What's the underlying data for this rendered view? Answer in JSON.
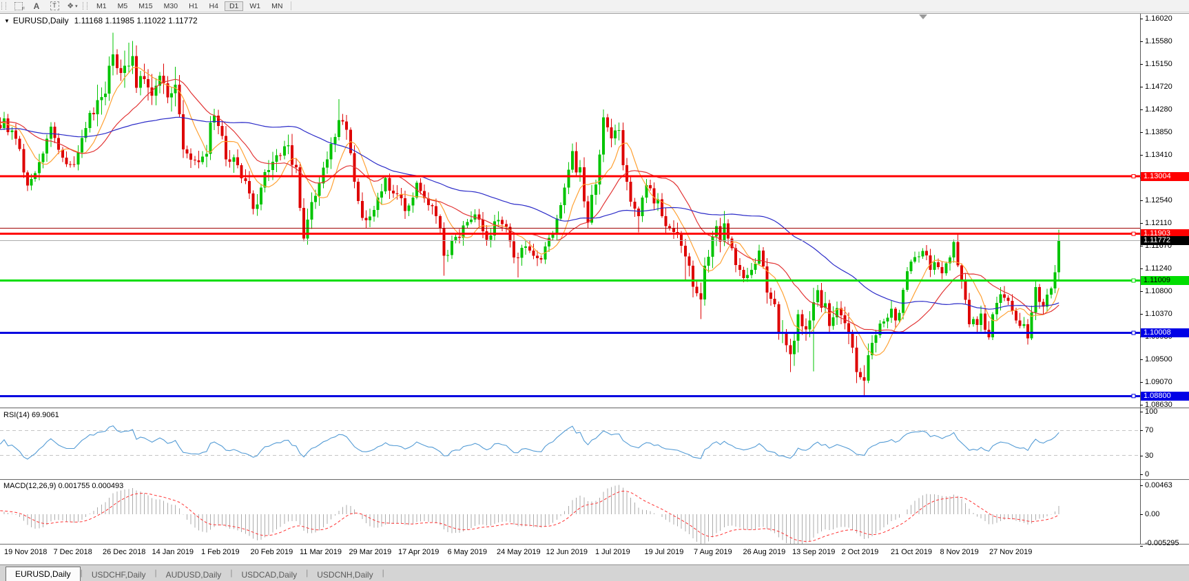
{
  "toolbar": {
    "icons": [
      {
        "name": "grid-f-icon",
        "glyph": "F"
      },
      {
        "name": "text-label-icon",
        "glyph": "A"
      },
      {
        "name": "text-box-icon",
        "glyph": "T"
      },
      {
        "name": "cursor-tool-icon",
        "glyph": "❖"
      }
    ],
    "dropdown_caret": "▾",
    "timeframes": [
      "M1",
      "M5",
      "M15",
      "M30",
      "H1",
      "H4",
      "D1",
      "W1",
      "MN"
    ],
    "active_timeframe": "D1"
  },
  "title": {
    "dropdown": "▼",
    "symbol": "EURUSD,Daily",
    "ohlc": "1.11168 1.11985 1.11022 1.11772"
  },
  "indicators": {
    "rsi_label": "RSI(14) 69.9061",
    "macd_label": "MACD(12,26,9) 0.001755 0.000493"
  },
  "price_axis_ticks": [
    "1.16020",
    "1.15580",
    "1.15150",
    "1.14720",
    "1.14280",
    "1.13850",
    "1.13410",
    "1.12980",
    "1.12540",
    "1.12110",
    "1.11670",
    "1.11240",
    "1.10800",
    "1.10370",
    "1.09930",
    "1.09500",
    "1.09070",
    "1.08630"
  ],
  "rsi_axis_ticks": [
    {
      "label": "100",
      "value": 100
    },
    {
      "label": "70",
      "value": 70
    },
    {
      "label": "30",
      "value": 30
    },
    {
      "label": "0",
      "value": 0
    }
  ],
  "macd_axis_ticks": [
    {
      "label": "0.00463",
      "value": 0.00463
    },
    {
      "label": "0.00",
      "value": 0
    },
    {
      "label": "-0.005295",
      "value": -0.005295
    }
  ],
  "level_labels": [
    {
      "label": "1.13004",
      "price": 1.13004,
      "bg": "#FF0000",
      "fg": "#FFFFFF"
    },
    {
      "label": "1.11903",
      "price": 1.11903,
      "bg": "#FF0000",
      "fg": "#FFFFFF"
    },
    {
      "label": "1.11009",
      "price": 1.11009,
      "bg": "#00DD00",
      "fg": "#000000"
    },
    {
      "label": "1.10008",
      "price": 1.10008,
      "bg": "#0000E6",
      "fg": "#FFFFFF"
    },
    {
      "label": "1.08800",
      "price": 1.088,
      "bg": "#0000E6",
      "fg": "#FFFFFF"
    }
  ],
  "bid_label": {
    "label": "1.11772",
    "price": 1.11772,
    "bg": "#000000",
    "fg": "#FFFFFF"
  },
  "tabs": {
    "items": [
      "EURUSD,Daily",
      "USDCHF,Daily",
      "AUDUSD,Daily",
      "USDCAD,Daily",
      "USDCNH,Daily"
    ],
    "active_index": 0
  },
  "colors": {
    "up": "#00C400",
    "down": "#DE0000",
    "ma_fast": "#FFA133",
    "ma_mid": "#E23535",
    "ma_slow": "#2B2BC8",
    "rsi_line": "#539BD5",
    "rsi_level_dash": "#C4C4C4",
    "macd_hist": "#ABABAB",
    "macd_signal": "#FF3232",
    "bid_line": "#ABABAB",
    "separator": "#6A6A6A",
    "axis_line": "#5A5A5A"
  },
  "chart_data": {
    "type": "candlestick",
    "symbol": "EURUSD",
    "timeframe": "Daily",
    "current_bar": {
      "open": 1.11168,
      "high": 1.11985,
      "low": 1.11022,
      "close": 1.11772
    },
    "bars_total": 272,
    "price_range_visible": [
      1.0863,
      1.1602
    ],
    "horizontal_lines": [
      {
        "price": 1.13004,
        "color": "#FF0000",
        "width": 3,
        "label": true
      },
      {
        "price": 1.1201,
        "color": "#A00000",
        "width": 1,
        "label": false
      },
      {
        "price": 1.11903,
        "color": "#FF0000",
        "width": 3,
        "label": true
      },
      {
        "price": 1.11009,
        "color": "#00DD00",
        "width": 3,
        "label": true
      },
      {
        "price": 1.10008,
        "color": "#0000E0",
        "width": 3,
        "label": true
      },
      {
        "price": 1.088,
        "color": "#0000E0",
        "width": 3,
        "label": true
      }
    ],
    "bid_line_price": 1.11772,
    "moving_averages": [
      {
        "period": 8,
        "color": "#FFA133"
      },
      {
        "period": 20,
        "color": "#E23535"
      },
      {
        "period": 55,
        "color": "#2B2BC8"
      }
    ],
    "rsi": {
      "period": 14,
      "current": 69.9061,
      "dashed_levels": [
        70,
        30
      ],
      "range": [
        0,
        100
      ]
    },
    "macd": {
      "fast": 12,
      "slow": 26,
      "signal": 9,
      "current_macd": 0.001755,
      "current_signal": 0.000493,
      "axis_max": 0.00463,
      "axis_min": -0.005295
    },
    "close_anchors": [
      [
        -60,
        1.1335
      ],
      [
        -45,
        1.1402
      ],
      [
        -30,
        1.1365
      ],
      [
        -15,
        1.1412
      ],
      [
        0,
        1.1405
      ],
      [
        3,
        1.1372
      ],
      [
        6,
        1.1292
      ],
      [
        9,
        1.132
      ],
      [
        12,
        1.1398
      ],
      [
        15,
        1.1342
      ],
      [
        18,
        1.1312
      ],
      [
        21,
        1.14
      ],
      [
        24,
        1.1442
      ],
      [
        26,
        1.1478
      ],
      [
        28,
        1.1548
      ],
      [
        30,
        1.15
      ],
      [
        32,
        1.1535
      ],
      [
        34,
        1.148
      ],
      [
        36,
        1.1506
      ],
      [
        38,
        1.1452
      ],
      [
        40,
        1.1476
      ],
      [
        42,
        1.1442
      ],
      [
        44,
        1.1462
      ],
      [
        46,
        1.1358
      ],
      [
        49,
        1.1322
      ],
      [
        52,
        1.1356
      ],
      [
        53,
        1.1418
      ],
      [
        56,
        1.1362
      ],
      [
        59,
        1.1322
      ],
      [
        62,
        1.1302
      ],
      [
        64,
        1.1246
      ],
      [
        67,
        1.1292
      ],
      [
        70,
        1.1332
      ],
      [
        73,
        1.1366
      ],
      [
        75,
        1.1312
      ],
      [
        77,
        1.1186
      ],
      [
        79,
        1.1242
      ],
      [
        82,
        1.133
      ],
      [
        86,
        1.141
      ],
      [
        88,
        1.1372
      ],
      [
        91,
        1.1252
      ],
      [
        92,
        1.1222
      ],
      [
        95,
        1.1242
      ],
      [
        98,
        1.1292
      ],
      [
        101,
        1.1262
      ],
      [
        104,
        1.1232
      ],
      [
        106,
        1.1292
      ],
      [
        108,
        1.1262
      ],
      [
        111,
        1.1232
      ],
      [
        113,
        1.1152
      ],
      [
        116,
        1.1182
      ],
      [
        118,
        1.1202
      ],
      [
        121,
        1.1232
      ],
      [
        124,
        1.1182
      ],
      [
        127,
        1.1222
      ],
      [
        130,
        1.1182
      ],
      [
        132,
        1.1132
      ],
      [
        134,
        1.1172
      ],
      [
        137,
        1.1132
      ],
      [
        140,
        1.1172
      ],
      [
        143,
        1.1252
      ],
      [
        146,
        1.1332
      ],
      [
        148,
        1.1312
      ],
      [
        150,
        1.1212
      ],
      [
        152,
        1.1292
      ],
      [
        154,
        1.1408
      ],
      [
        156,
        1.1382
      ],
      [
        158,
        1.1372
      ],
      [
        160,
        1.1282
      ],
      [
        163,
        1.1225
      ],
      [
        165,
        1.1272
      ],
      [
        168,
        1.1252
      ],
      [
        170,
        1.1212
      ],
      [
        173,
        1.1182
      ],
      [
        175,
        1.1152
      ],
      [
        178,
        1.1082
      ],
      [
        179,
        1.1048
      ],
      [
        180,
        1.1112
      ],
      [
        182,
        1.1198
      ],
      [
        185,
        1.1192
      ],
      [
        188,
        1.1142
      ],
      [
        191,
        1.1102
      ],
      [
        194,
        1.1152
      ],
      [
        196,
        1.1092
      ],
      [
        199,
        1.1012
      ],
      [
        200,
        1.0992
      ],
      [
        202,
        1.0968
      ],
      [
        204,
        1.1035
      ],
      [
        207,
        1.1012
      ],
      [
        208,
        1.1065
      ],
      [
        209,
        1.1072
      ],
      [
        212,
        1.1032
      ],
      [
        215,
        1.1042
      ],
      [
        218,
        1.0958
      ],
      [
        220,
        1.0932
      ],
      [
        221,
        1.0906
      ],
      [
        222,
        1.0962
      ],
      [
        224,
        1.0982
      ],
      [
        227,
        1.1042
      ],
      [
        230,
        1.1032
      ],
      [
        233,
        1.1148
      ],
      [
        235,
        1.1152
      ],
      [
        238,
        1.1132
      ],
      [
        241,
        1.1112
      ],
      [
        244,
        1.1162
      ],
      [
        246,
        1.1102
      ],
      [
        248,
        1.1022
      ],
      [
        251,
        1.1032
      ],
      [
        253,
        1.0996
      ],
      [
        255,
        1.1062
      ],
      [
        258,
        1.1072
      ],
      [
        261,
        1.1012
      ],
      [
        263,
        1.1002
      ],
      [
        265,
        1.1078
      ],
      [
        267,
        1.1062
      ],
      [
        269,
        1.1086
      ],
      [
        270,
        1.1117
      ],
      [
        271,
        1.11772
      ]
    ],
    "wick_events": [
      {
        "bar": 28,
        "high": 1.1575
      },
      {
        "bar": 32,
        "high": 1.1556
      },
      {
        "bar": 44,
        "high": 1.151
      },
      {
        "bar": 77,
        "low": 1.1176
      },
      {
        "bar": 86,
        "high": 1.1448
      },
      {
        "bar": 113,
        "low": 1.111
      },
      {
        "bar": 132,
        "low": 1.1107
      },
      {
        "bar": 154,
        "high": 1.1428
      },
      {
        "bar": 163,
        "low": 1.1193
      },
      {
        "bar": 175,
        "low": 1.1101
      },
      {
        "bar": 179,
        "low": 1.1027
      },
      {
        "bar": 202,
        "low": 1.0926
      },
      {
        "bar": 208,
        "low": 1.0927,
        "high": 1.1087
      },
      {
        "bar": 221,
        "low": 1.0879
      }
    ],
    "vol_zones": [
      [
        24,
        46,
        1.9
      ],
      [
        47,
        92,
        1.35
      ],
      [
        143,
        160,
        1.3
      ],
      [
        172,
        185,
        1.5
      ],
      [
        196,
        226,
        1.5
      ],
      [
        248,
        262,
        1.1
      ]
    ],
    "date_labels": [
      "19 Nov 2018",
      "7 Dec 2018",
      "26 Dec 2018",
      "14 Jan 2019",
      "1 Feb 2019",
      "20 Feb 2019",
      "11 Mar 2019",
      "29 Mar 2019",
      "17 Apr 2019",
      "6 May 2019",
      "24 May 2019",
      "12 Jun 2019",
      "1 Jul 2019",
      "19 Jul 2019",
      "7 Aug 2019",
      "26 Aug 2019",
      "13 Sep 2019",
      "2 Oct 2019",
      "21 Oct 2019",
      "8 Nov 2019",
      "27 Nov 2019"
    ]
  }
}
